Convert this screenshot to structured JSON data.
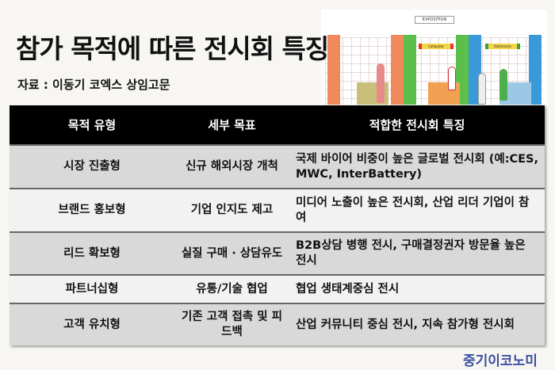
{
  "title": "참가 목적에 따른 전시회 특징",
  "source": "자료 : 이동기 코엑스 상임고문",
  "illustration": {
    "sign": "EXPOSITION",
    "booth_labels": [
      "Computer",
      "Electronics"
    ]
  },
  "table": {
    "headers": [
      "목적 유형",
      "세부 목표",
      "적합한 전시회 특징"
    ],
    "rows": [
      {
        "type": "시장 진출형",
        "goal": "신규 해외시장 개척",
        "feature": "국제 바이어 비중이 높은 글로벌 전시회 (예:CES, MWC, InterBattery)"
      },
      {
        "type": "브랜드 홍보형",
        "goal": "기업 인지도 제고",
        "feature": "미디어 노출이 높은 전시회, 산업 리더 기업이 참여"
      },
      {
        "type": "리드 확보형",
        "goal": "실질 구매 · 상담유도",
        "feature": "B2B상담 병행 전시, 구매결정권자 방문율 높은 전시"
      },
      {
        "type": "파트너십형",
        "goal": "유통/기술 협업",
        "feature": "협업 생태계중심 전시"
      },
      {
        "type": "고객 유치형",
        "goal": "기존 고객 접촉 및 피드백",
        "feature": "산업 커뮤니티 중심 전시, 지속 참가형 전시회"
      }
    ]
  },
  "logo": "중기이코노미"
}
